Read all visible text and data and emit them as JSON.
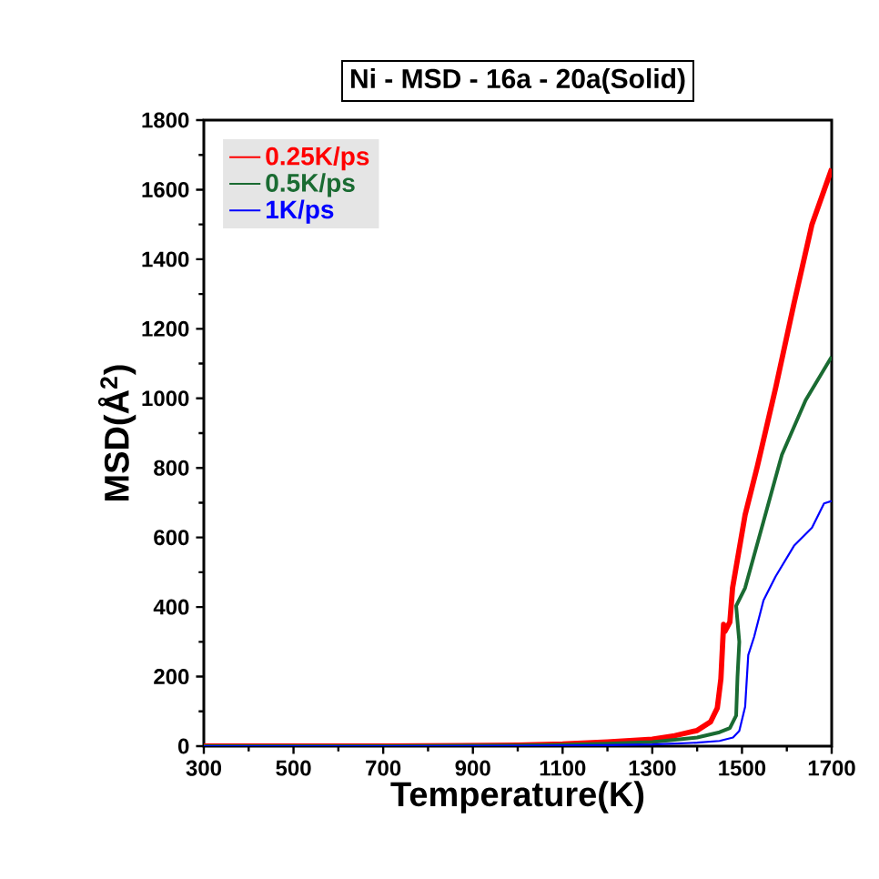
{
  "chart_data": {
    "type": "line",
    "title": "Ni - MSD - 16a - 20a(Solid)",
    "xlabel": "Temperature(K)",
    "ylabel": "MSD(Å$^{2}$)",
    "xlim": [
      300,
      1700
    ],
    "ylim": [
      0,
      1800
    ],
    "xticks": [
      300,
      500,
      700,
      900,
      1100,
      1300,
      1500,
      1700
    ],
    "yticks": [
      0,
      200,
      400,
      600,
      800,
      1000,
      1200,
      1400,
      1600,
      1800
    ],
    "legend": "top left",
    "grid": false,
    "marker": "none",
    "line_style": "solid",
    "series": [
      {
        "name": "0.25K/ps",
        "color": "#ff0000",
        "x": [
          300,
          700,
          1000,
          1100,
          1200,
          1300,
          1350,
          1400,
          1430,
          1445,
          1453,
          1459,
          1462,
          1473,
          1479,
          1507,
          1534,
          1575,
          1616,
          1656,
          1700
        ],
        "values": [
          0,
          0,
          3,
          6,
          12,
          20,
          30,
          45,
          70,
          110,
          194,
          350,
          330,
          357,
          455,
          665,
          803,
          1030,
          1273,
          1500,
          1660
        ]
      },
      {
        "name": "0.5K/ps",
        "color": "#1a6b32",
        "x": [
          300,
          700,
          1000,
          1100,
          1200,
          1300,
          1400,
          1450,
          1473,
          1487,
          1490,
          1494,
          1487,
          1507,
          1548,
          1589,
          1642,
          1700
        ],
        "values": [
          0,
          0,
          2,
          4,
          7,
          12,
          25,
          40,
          52,
          88,
          200,
          300,
          403,
          455,
          646,
          838,
          995,
          1120
        ]
      },
      {
        "name": "1K/ps",
        "color": "#0000ff",
        "x": [
          300,
          700,
          1000,
          1200,
          1300,
          1400,
          1450,
          1480,
          1494,
          1507,
          1514,
          1527,
          1548,
          1575,
          1616,
          1656,
          1683,
          1700
        ],
        "values": [
          0,
          0,
          1,
          3,
          5,
          10,
          15,
          25,
          44,
          113,
          262,
          314,
          419,
          488,
          576,
          628,
          698,
          705
        ]
      }
    ]
  }
}
